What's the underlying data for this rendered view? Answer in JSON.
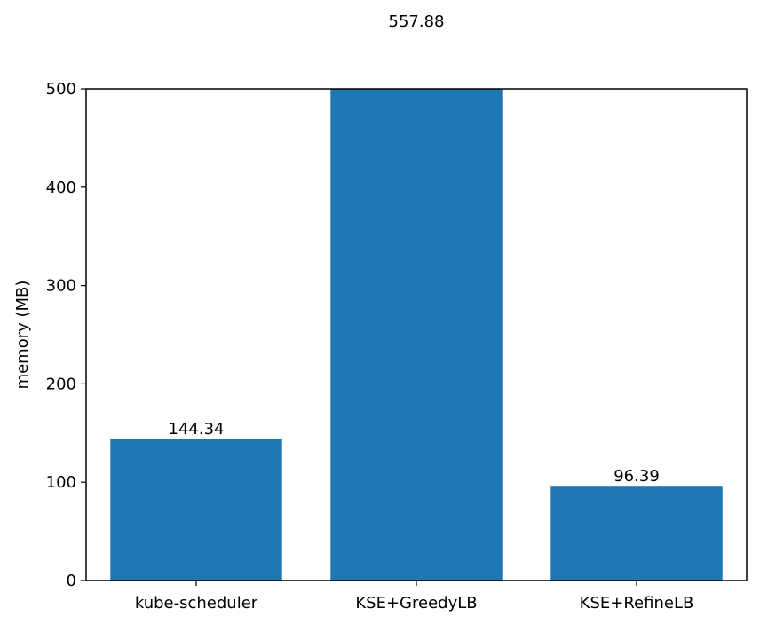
{
  "chart_data": {
    "type": "bar",
    "categories": [
      "kube-scheduler",
      "KSE+GreedyLB",
      "KSE+RefineLB"
    ],
    "values": [
      144.34,
      557.88,
      96.39
    ],
    "value_labels": [
      "144.34",
      "557.88",
      "96.39"
    ],
    "title": "",
    "xlabel": "",
    "ylabel": "memory (MB)",
    "ylim": [
      0,
      500
    ],
    "yticks": [
      0,
      100,
      200,
      300,
      400,
      500
    ],
    "grid": false,
    "legend": "none",
    "bar_color": "#1f77b4",
    "clipped_bars": [
      "KSE+GreedyLB"
    ]
  }
}
